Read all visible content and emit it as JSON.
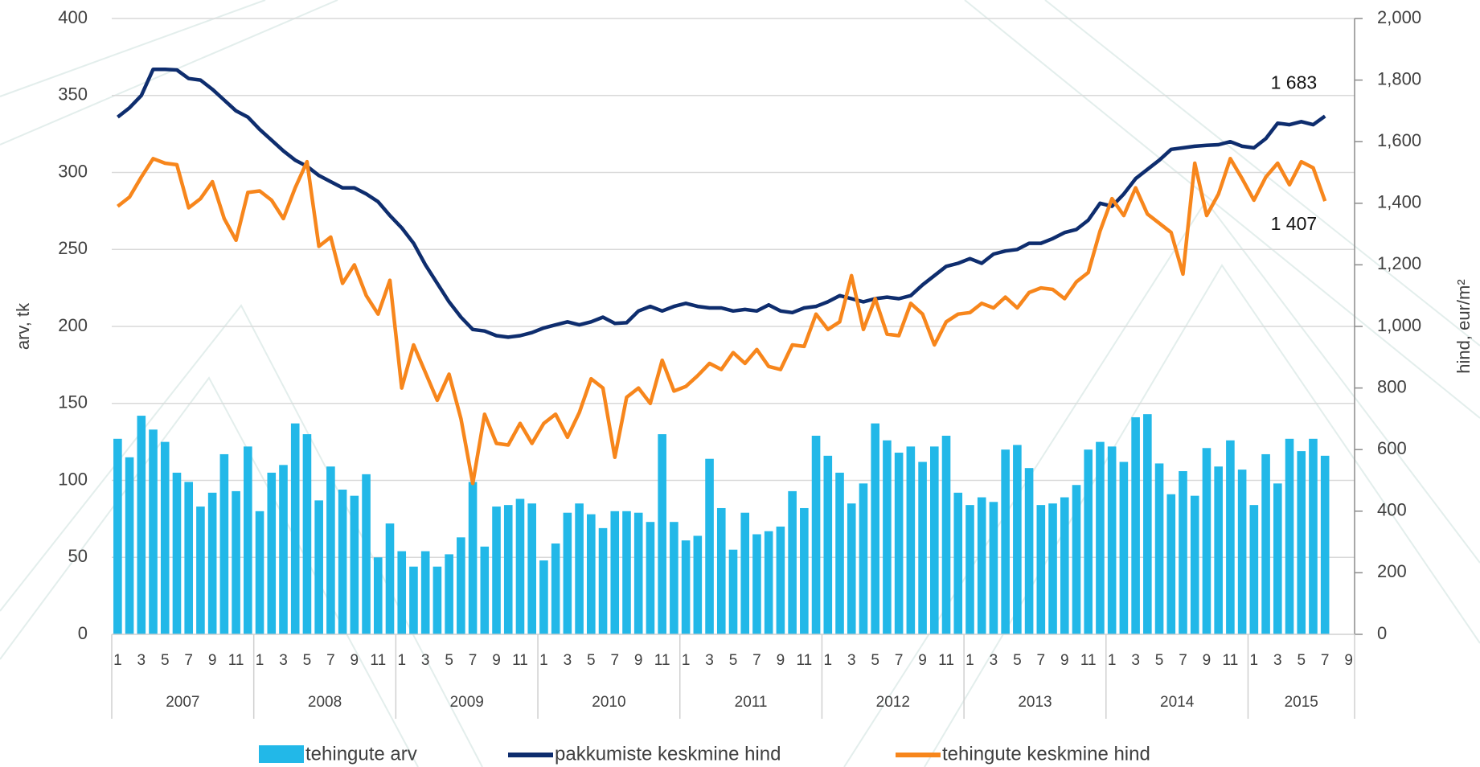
{
  "chart_data": {
    "type": "bar",
    "y_label": "arv, tk",
    "y2_label": "hind, eur/m²",
    "categories": [
      "1",
      null,
      "3",
      null,
      "5",
      null,
      "7",
      null,
      "9",
      null,
      "11",
      null,
      "1",
      null,
      "3",
      null,
      "5",
      null,
      "7",
      null,
      "9",
      null,
      "11",
      null,
      "1",
      null,
      "3",
      null,
      "5",
      null,
      "7",
      null,
      "9",
      null,
      "11",
      null,
      "1",
      null,
      "3",
      null,
      "5",
      null,
      "7",
      null,
      "9",
      null,
      "11",
      null,
      "1",
      null,
      "3",
      null,
      "5",
      null,
      "7",
      null,
      "9",
      null,
      "11",
      null,
      "1",
      null,
      "3",
      null,
      "5",
      null,
      "7",
      null,
      "9",
      null,
      "11",
      null,
      "1",
      null,
      "3",
      null,
      "5",
      null,
      "7",
      null,
      "9",
      null,
      "11",
      null,
      "1",
      null,
      "3",
      null,
      "5",
      null,
      "7",
      null,
      "9",
      null,
      "11",
      null,
      "1",
      null,
      "3",
      null,
      "5",
      null,
      "7",
      null,
      "9"
    ],
    "year_labels": [
      "2007",
      "2008",
      "2009",
      "2010",
      "2011",
      "2012",
      "2013",
      "2014",
      "2015"
    ],
    "ylim": [
      0,
      400
    ],
    "yticks": [
      0,
      50,
      100,
      150,
      200,
      250,
      300,
      350,
      400
    ],
    "y2lim": [
      0,
      2000
    ],
    "y2ticks": [
      0,
      200,
      400,
      600,
      800,
      {
        "value": 1000,
        "label": "1,000"
      },
      {
        "value": 1200,
        "label": "1,200"
      },
      {
        "value": 1400,
        "label": "1,400"
      },
      {
        "value": 1600,
        "label": "1,600"
      },
      {
        "value": 1800,
        "label": "1,800"
      },
      {
        "value": 2000,
        "label": "2,000"
      }
    ],
    "grid": true,
    "legend": "bottom",
    "series": [
      {
        "name": "tehingute arv",
        "type": "bar",
        "color": "#22b8e8",
        "values": [
          127,
          115,
          142,
          133,
          125,
          105,
          99,
          83,
          92,
          117,
          93,
          122,
          80,
          105,
          110,
          137,
          130,
          87,
          109,
          94,
          90,
          104,
          50,
          72,
          54,
          44,
          54,
          44,
          52,
          63,
          99,
          57,
          83,
          84,
          88,
          85,
          48,
          59,
          79,
          85,
          78,
          69,
          80,
          80,
          79,
          73,
          130,
          73,
          61,
          64,
          114,
          82,
          55,
          79,
          65,
          67,
          70,
          93,
          82,
          129,
          116,
          105,
          85,
          98,
          137,
          126,
          118,
          122,
          112,
          122,
          129,
          92,
          84,
          89,
          86,
          120,
          123,
          108,
          84,
          85,
          89,
          97,
          120,
          125,
          122,
          112,
          141,
          143,
          111,
          91,
          106,
          90,
          121,
          109,
          126,
          107,
          84,
          117,
          98,
          127,
          119,
          127,
          116,
          null,
          null
        ]
      },
      {
        "name": "pakkumiste keskmine hind",
        "type": "line",
        "axis": "y2",
        "color": "#0e2d6e",
        "values": [
          1680,
          1710,
          1750,
          1835,
          1835,
          1833,
          1805,
          1800,
          1770,
          1735,
          1700,
          1680,
          1640,
          1605,
          1570,
          1540,
          1520,
          1490,
          1470,
          1450,
          1450,
          1430,
          1405,
          1360,
          1320,
          1270,
          1200,
          1140,
          1080,
          1030,
          990,
          985,
          970,
          965,
          970,
          980,
          995,
          1005,
          1015,
          1005,
          1015,
          1030,
          1010,
          1012,
          1050,
          1065,
          1050,
          1065,
          1075,
          1065,
          1060,
          1060,
          1050,
          1055,
          1050,
          1070,
          1050,
          1045,
          1060,
          1065,
          1080,
          1100,
          1090,
          1080,
          1090,
          1095,
          1090,
          1100,
          1135,
          1165,
          1195,
          1205,
          1220,
          1205,
          1235,
          1245,
          1250,
          1270,
          1270,
          1285,
          1305,
          1315,
          1345,
          1400,
          1390,
          1430,
          1480,
          1510,
          1540,
          1575,
          1580,
          1585,
          1588,
          1590,
          1600,
          1585,
          1580,
          1610,
          1660,
          1655,
          1665,
          1655,
          1683,
          null,
          null
        ],
        "value_labels": [
          null,
          null,
          null,
          null,
          null,
          null,
          null,
          null,
          null,
          null,
          null,
          null,
          null,
          null,
          null,
          null,
          null,
          null,
          null,
          null,
          null,
          null,
          null,
          null,
          null,
          null,
          null,
          null,
          null,
          null,
          null,
          null,
          null,
          null,
          null,
          null,
          null,
          null,
          null,
          null,
          null,
          null,
          null,
          null,
          null,
          null,
          null,
          null,
          null,
          null,
          null,
          null,
          null,
          null,
          null,
          null,
          null,
          null,
          null,
          null,
          null,
          null,
          null,
          null,
          null,
          null,
          null,
          null,
          null,
          null,
          null,
          null,
          null,
          null,
          null,
          null,
          null,
          null,
          null,
          null,
          null,
          null,
          null,
          null,
          null,
          null,
          null,
          null,
          null,
          null,
          null,
          null,
          null,
          null,
          null,
          null,
          null,
          null,
          null,
          null,
          null,
          null,
          "1 683",
          null,
          null
        ]
      },
      {
        "name": "tehingute keskmine hind",
        "type": "line",
        "axis": "y2",
        "color": "#f7861c",
        "values": [
          1390,
          1420,
          1485,
          1545,
          1530,
          1525,
          1385,
          1415,
          1470,
          1350,
          1280,
          1435,
          1440,
          1410,
          1350,
          1450,
          1535,
          1260,
          1290,
          1140,
          1200,
          1100,
          1040,
          1150,
          800,
          940,
          850,
          760,
          845,
          700,
          490,
          715,
          620,
          615,
          685,
          620,
          685,
          715,
          640,
          720,
          830,
          800,
          575,
          770,
          800,
          750,
          890,
          790,
          805,
          840,
          880,
          860,
          915,
          880,
          925,
          870,
          860,
          940,
          935,
          1040,
          990,
          1015,
          1165,
          990,
          1090,
          975,
          970,
          1075,
          1040,
          940,
          1015,
          1040,
          1045,
          1075,
          1060,
          1095,
          1060,
          1110,
          1125,
          1120,
          1090,
          1145,
          1175,
          1310,
          1415,
          1360,
          1450,
          1365,
          1335,
          1305,
          1170,
          1530,
          1360,
          1430,
          1545,
          1480,
          1410,
          1485,
          1530,
          1460,
          1535,
          1515,
          1407,
          null,
          null
        ],
        "value_labels": [
          null,
          null,
          null,
          null,
          null,
          null,
          null,
          null,
          null,
          null,
          null,
          null,
          null,
          null,
          null,
          null,
          null,
          null,
          null,
          null,
          null,
          null,
          null,
          null,
          null,
          null,
          null,
          null,
          null,
          null,
          null,
          null,
          null,
          null,
          null,
          null,
          null,
          null,
          null,
          null,
          null,
          null,
          null,
          null,
          null,
          null,
          null,
          null,
          null,
          null,
          null,
          null,
          null,
          null,
          null,
          null,
          null,
          null,
          null,
          null,
          null,
          null,
          null,
          null,
          null,
          null,
          null,
          null,
          null,
          null,
          null,
          null,
          null,
          null,
          null,
          null,
          null,
          null,
          null,
          null,
          null,
          null,
          null,
          null,
          null,
          null,
          null,
          null,
          null,
          null,
          null,
          null,
          null,
          null,
          null,
          null,
          null,
          null,
          null,
          null,
          null,
          null,
          "1 407",
          null,
          null
        ]
      }
    ]
  }
}
